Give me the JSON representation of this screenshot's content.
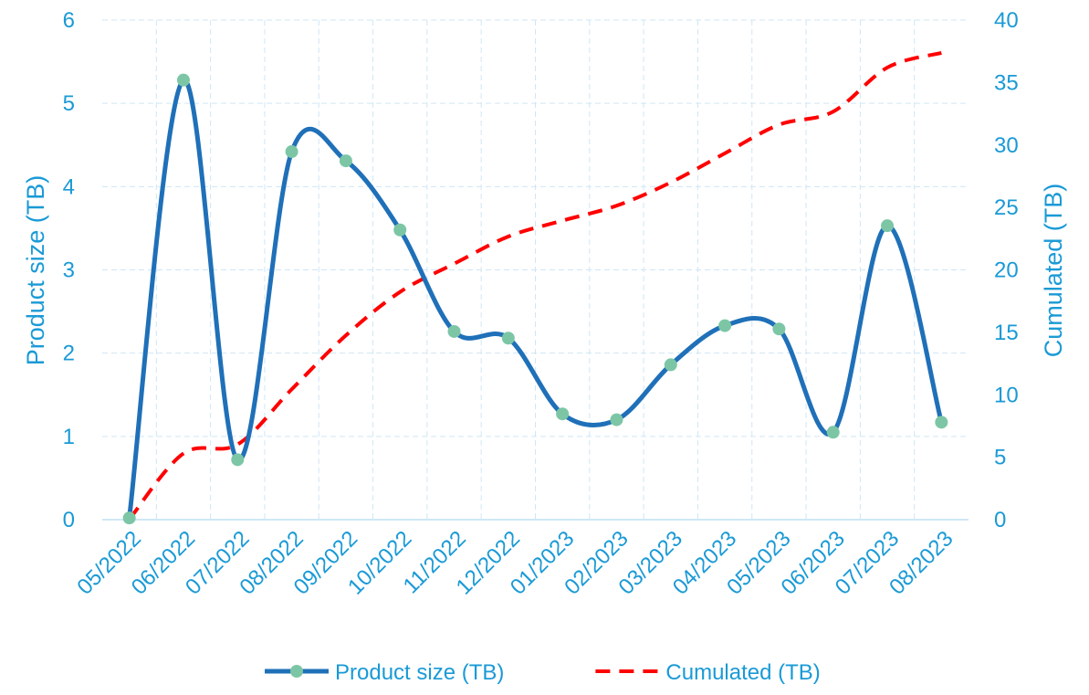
{
  "chart_data": {
    "type": "line",
    "y_label": "Product size (TB)",
    "y2_label": "Cumulated (TB)",
    "categories": [
      "05/2022",
      "06/2022",
      "07/2022",
      "08/2022",
      "09/2022",
      "10/2022",
      "11/2022",
      "12/2022",
      "01/2023",
      "02/2023",
      "03/2023",
      "04/2023",
      "05/2023",
      "06/2023",
      "07/2023",
      "08/2023"
    ],
    "series": [
      {
        "name": "Product size (TB)",
        "color": "#1f70b8",
        "marker_color": "#7cc6a6",
        "axis": "y",
        "smooth": true,
        "dash": false,
        "values": [
          0.02,
          5.28,
          0.72,
          4.42,
          4.31,
          3.48,
          2.26,
          2.18,
          1.27,
          1.2,
          1.86,
          2.33,
          2.29,
          1.05,
          3.53,
          1.17
        ]
      },
      {
        "name": "Cumulated (TB)",
        "color": "#ff0000",
        "axis": "y2",
        "smooth": true,
        "dash": true,
        "values": [
          0.02,
          5.3,
          6.02,
          10.44,
          14.75,
          18.23,
          20.49,
          22.67,
          23.94,
          25.14,
          27.0,
          29.33,
          31.62,
          32.67,
          36.2,
          37.37
        ]
      }
    ],
    "ylim": [
      0,
      6
    ],
    "yticks": [
      0,
      1,
      2,
      3,
      4,
      5,
      6
    ],
    "y2lim": [
      0,
      40
    ],
    "y2ticks": [
      0,
      5,
      10,
      15,
      20,
      25,
      30,
      35,
      40
    ],
    "grid": true,
    "legend": "bottom",
    "axis_color": "#1a9ad6"
  }
}
